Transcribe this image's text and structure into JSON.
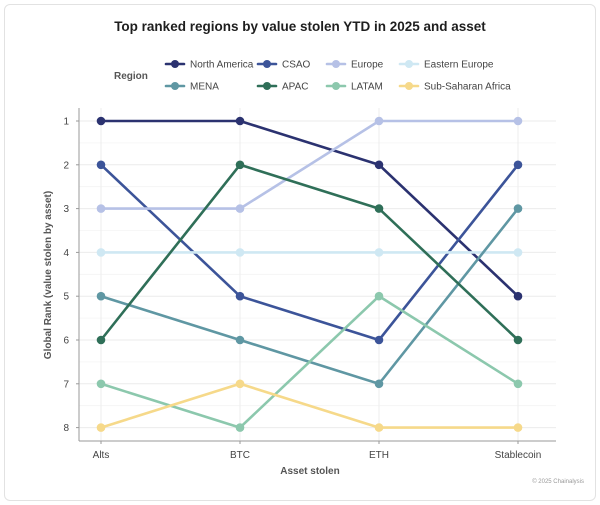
{
  "chart_data": {
    "type": "line",
    "title": "Top ranked regions by value stolen YTD in 2025 and asset",
    "xlabel": "Asset stolen",
    "ylabel": "Global Rank (value stolen by asset)",
    "legend_title": "Region",
    "legend_position": "top",
    "categories": [
      "Alts",
      "BTC",
      "ETH",
      "Stablecoin"
    ],
    "y_ticks": [
      "1",
      "2",
      "3",
      "4",
      "5",
      "6",
      "7",
      "8"
    ],
    "ylim": [
      8,
      1
    ],
    "y_reversed": true,
    "grid": true,
    "series": [
      {
        "name": "North America",
        "color": "#2b3270",
        "values": [
          1,
          1,
          2,
          5
        ]
      },
      {
        "name": "CSAO",
        "color": "#3c5499",
        "values": [
          2,
          5,
          6,
          2
        ]
      },
      {
        "name": "Europe",
        "color": "#b6c1e6",
        "values": [
          3,
          3,
          1,
          1
        ]
      },
      {
        "name": "Eastern Europe",
        "color": "#cfe8f3",
        "values": [
          4,
          4,
          4,
          4
        ]
      },
      {
        "name": "MENA",
        "color": "#5f97a3",
        "values": [
          5,
          6,
          7,
          3
        ]
      },
      {
        "name": "APAC",
        "color": "#2f6f58",
        "values": [
          6,
          2,
          3,
          6
        ]
      },
      {
        "name": "LATAM",
        "color": "#8cc8ad",
        "values": [
          7,
          8,
          5,
          7
        ]
      },
      {
        "name": "Sub-Saharan Africa",
        "color": "#f6d98a",
        "values": [
          8,
          7,
          8,
          8
        ]
      }
    ]
  },
  "footer": {
    "copyright": "© 2025 Chainalysis"
  }
}
